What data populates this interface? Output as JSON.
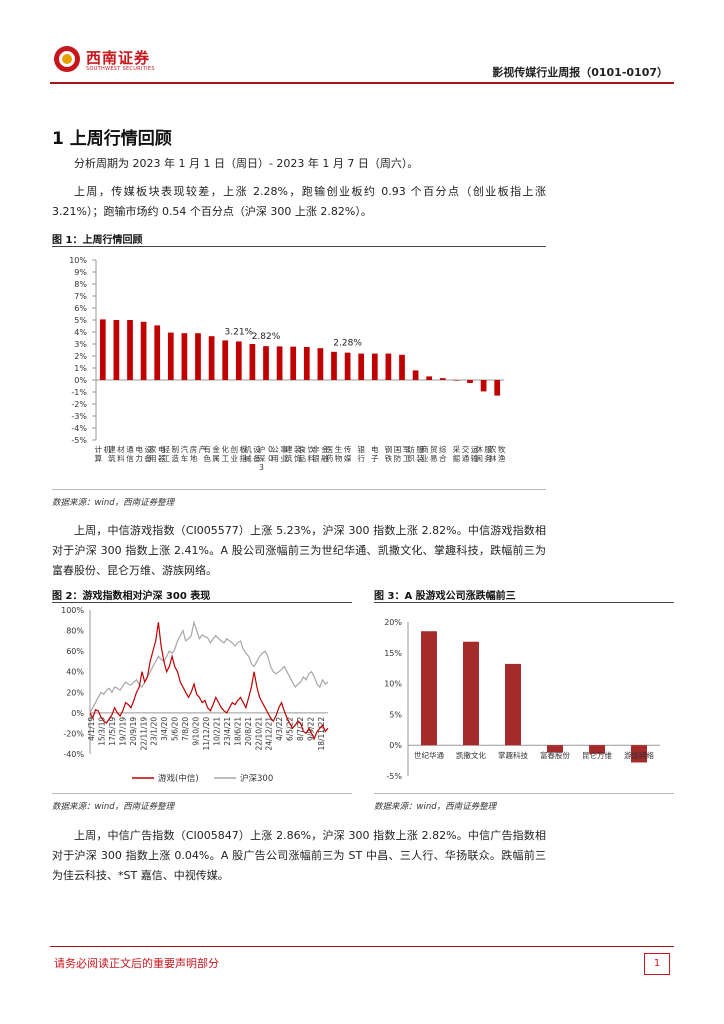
{
  "header": {
    "logo_cn": "西南证券",
    "logo_en": "SOUTHWEST SECURITIES",
    "report_title": "影视传媒行业周报（0101-0107）"
  },
  "section": {
    "title": "1 上周行情回顾"
  },
  "paragraphs": {
    "p1": "分析周期为 2023 年 1 月 1 日（周日）- 2023 年 1 月 7 日（周六）。",
    "p2": "上周，传媒板块表现较差，上涨 2.28%，跑输创业板约 0.93 个百分点（创业板指上涨 3.21%）；跑输市场约 0.54 个百分点（沪深 300 上涨 2.82%）。",
    "p3": "上周，中信游戏指数（CI005577）上涨 5.23%，沪深 300 指数上涨 2.82%。中信游戏指数相对于沪深 300 指数上涨 2.41%。A 股公司涨幅前三为世纪华通、凯撒文化、掌趣科技，跌幅前三为富春股份、昆仑万维、游族网络。",
    "p4": "上周，中信广告指数（CI005847）上涨 2.86%，沪深 300 指数上涨 2.82%。中信广告指数相对于沪深 300 指数上涨 0.04%。A 股广告公司涨幅前三为 ST 中昌、三人行、华扬联众。跌幅前三为佳云科技、*ST 嘉信、中视传媒。"
  },
  "figures": {
    "fig1_title": "图 1：上周行情回顾",
    "fig2_title": "图 2：游戏指数相对沪深 300 表现",
    "fig3_title": "图 3：A 股游戏公司涨跌幅前三",
    "source1": "数据来源：wind，西南证券整理",
    "source2": "数据来源：wind，西南证券整理",
    "source3": "数据来源：wind，西南证券整理"
  },
  "chart_data": [
    {
      "id": "fig1",
      "type": "bar",
      "title": "上周行情回顾",
      "color": "#c00000",
      "ylim": [
        -5,
        10
      ],
      "yticks": [
        "10%",
        "9%",
        "8%",
        "7%",
        "6%",
        "5%",
        "4%",
        "3%",
        "2%",
        "1%",
        "0%",
        "-1%",
        "-2%",
        "-3%",
        "-4%",
        "-5%"
      ],
      "categories": [
        "计算机",
        "建筑材料",
        "通信",
        "电力设备",
        "家用电器",
        "轻工制造",
        "汽车",
        "房地产",
        "有色金属",
        "化工",
        "创业板指",
        "机械设备",
        "沪深300",
        "公用事业",
        "建筑装饰",
        "食品饮料",
        "非银金融",
        "医药生物",
        "传媒",
        "银行",
        "电子",
        "钢铁",
        "国防军工",
        "纺织服装",
        "商业贸易",
        "综合",
        "采掘",
        "交通运输",
        "休闲服务",
        "农林牧渔"
      ],
      "values": [
        5.05,
        5.0,
        5.0,
        4.85,
        4.55,
        3.95,
        3.9,
        3.9,
        3.65,
        3.3,
        3.21,
        3.0,
        2.82,
        2.8,
        2.78,
        2.75,
        2.65,
        2.35,
        2.28,
        2.2,
        2.2,
        2.2,
        2.1,
        0.8,
        0.3,
        0.15,
        0.0,
        -0.25,
        -0.95,
        -1.3
      ],
      "annotations": [
        {
          "category": "创业板指",
          "text": "3.21%"
        },
        {
          "category": "沪深300",
          "text": "2.82%"
        },
        {
          "category": "传媒",
          "text": "2.28%"
        }
      ]
    },
    {
      "id": "fig2",
      "type": "line",
      "ylim": [
        -40,
        100
      ],
      "yticks": [
        "100%",
        "80%",
        "60%",
        "40%",
        "20%",
        "0%",
        "-20%",
        "-40%"
      ],
      "x_ticks": [
        "4/1/19",
        "15/3/19",
        "17/5/19",
        "19/7/19",
        "20/9/19",
        "22/11/19",
        "23/1/20",
        "3/4/20",
        "5/6/20",
        "7/8/20",
        "9/10/20",
        "11/12/20",
        "10/2/21",
        "23/4/21",
        "18/6/21",
        "20/8/21",
        "22/10/21",
        "24/12/21",
        "4/3/22",
        "6/5/22",
        "8/7/22",
        "9/9/22",
        "18/11/22"
      ],
      "series": [
        {
          "name": "游戏(中信)",
          "color": "#c00000",
          "values": [
            0,
            -5,
            3,
            2,
            -4,
            -8,
            -10,
            -6,
            -2,
            5,
            0,
            -3,
            2,
            10,
            8,
            5,
            12,
            20,
            25,
            40,
            30,
            35,
            50,
            60,
            70,
            88,
            65,
            50,
            40,
            45,
            55,
            45,
            40,
            30,
            25,
            20,
            15,
            20,
            28,
            18,
            15,
            10,
            12,
            5,
            2,
            8,
            15,
            10,
            5,
            2,
            0,
            5,
            10,
            8,
            12,
            15,
            10,
            5,
            15,
            25,
            40,
            25,
            15,
            10,
            5,
            0,
            -5,
            -8,
            -3,
            5,
            10,
            2,
            -5,
            -10,
            -15,
            -12,
            -8,
            -10,
            -18,
            -20,
            -15,
            -20,
            -25,
            -18,
            -15,
            -12,
            -18,
            -15
          ]
        },
        {
          "name": "沪深300",
          "color": "#a6a6a6",
          "values": [
            0,
            5,
            10,
            15,
            20,
            18,
            22,
            24,
            20,
            25,
            24,
            22,
            26,
            30,
            28,
            27,
            30,
            32,
            28,
            25,
            30,
            35,
            40,
            45,
            50,
            55,
            52,
            50,
            55,
            60,
            58,
            62,
            70,
            75,
            80,
            70,
            72,
            75,
            88,
            80,
            72,
            76,
            74,
            73,
            68,
            72,
            75,
            72,
            70,
            68,
            72,
            70,
            68,
            65,
            68,
            70,
            62,
            58,
            55,
            48,
            45,
            50,
            55,
            58,
            60,
            55,
            45,
            40,
            38,
            40,
            42,
            45,
            40,
            35,
            30,
            25,
            28,
            30,
            35,
            32,
            38,
            40,
            35,
            28,
            25,
            32,
            28,
            30
          ]
        }
      ]
    },
    {
      "id": "fig3",
      "type": "bar",
      "color": "#a52a2a",
      "ylim": [
        -5,
        20
      ],
      "yticks": [
        "20%",
        "15%",
        "10%",
        "5%",
        "0%",
        "-5%"
      ],
      "categories": [
        "世纪华通",
        "凯撒文化",
        "掌趣科技",
        "富春股份",
        "昆仑万维",
        "游族网络"
      ],
      "values": [
        18.5,
        16.8,
        13.2,
        -1.2,
        -1.4,
        -2.8
      ]
    }
  ]
}
